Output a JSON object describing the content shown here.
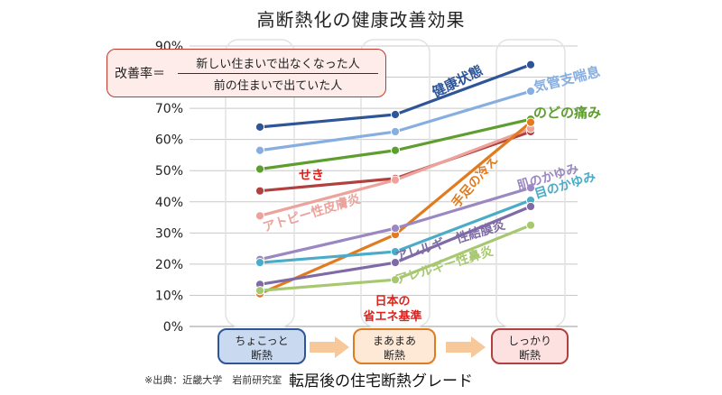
{
  "chart_data": {
    "type": "line",
    "title": "高断熱化の健康改善効果",
    "xlabel": "転居後の住宅断熱グレード",
    "categories": [
      "ちょこっと断熱",
      "まあまあ断熱",
      "しっかり断熱"
    ],
    "ylim": [
      0,
      90
    ],
    "yticks": [
      "0%",
      "10%",
      "20%",
      "30%",
      "40%",
      "50%",
      "60%",
      "70%",
      "80%",
      "90%"
    ],
    "grid": true,
    "series": [
      {
        "name": "健康状態",
        "values": [
          64,
          68,
          84
        ],
        "color": "#2e5597"
      },
      {
        "name": "気管支喘息",
        "values": [
          56.5,
          62.5,
          75.5
        ],
        "color": "#86aee0"
      },
      {
        "name": "のどの痛み",
        "values": [
          50.5,
          56.5,
          66.5
        ],
        "color": "#5e9e2f"
      },
      {
        "name": "せき",
        "values": [
          43.5,
          47.5,
          62.5
        ],
        "color": "#b0413e"
      },
      {
        "name": "アトピー性皮膚炎",
        "values": [
          35.5,
          47,
          63.5
        ],
        "color": "#eda39b"
      },
      {
        "name": "手足の冷え",
        "values": [
          10.5,
          29.5,
          65.5
        ],
        "color": "#e07b1f"
      },
      {
        "name": "肌のかゆみ",
        "values": [
          21.5,
          31.5,
          44.5
        ],
        "color": "#9b87c1"
      },
      {
        "name": "目のかゆみ",
        "values": [
          20.5,
          24,
          40.5
        ],
        "color": "#4aacc6"
      },
      {
        "name": "アレルギー性結膜炎",
        "values": [
          13.5,
          20.5,
          38.5
        ],
        "color": "#7f6aa6"
      },
      {
        "name": "アレルギー性鼻炎",
        "values": [
          11.5,
          15,
          32.5
        ],
        "color": "#a7c870"
      }
    ]
  },
  "formula": {
    "lhs": "改善率＝",
    "numerator": "新しい住まいで出なくなった人",
    "denominator": "前の住まいで出ていた人"
  },
  "grades": [
    {
      "line1": "ちょこっと",
      "line2": "断熱"
    },
    {
      "line1": "まあまあ",
      "line2": "断熱"
    },
    {
      "line1": "しっかり",
      "line2": "断熱"
    }
  ],
  "standard_note": {
    "line1": "日本の",
    "line2": "省エネ基準"
  },
  "source": "※出典：近畿大学　岩前研究室",
  "colors": {
    "accent_red": "#e0201b",
    "arrow": "#f6c89a"
  }
}
